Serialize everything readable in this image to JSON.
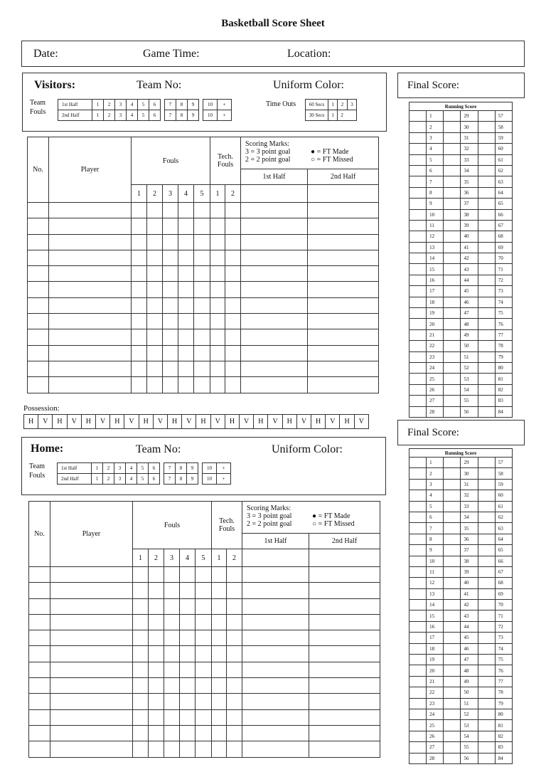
{
  "title": "Basketball Score Sheet",
  "header": {
    "date": "Date:",
    "game_time": "Game Time:",
    "location": "Location:"
  },
  "visitors": {
    "label": "Visitors:",
    "team_no": "Team No:",
    "uniform": "Uniform Color:",
    "team_fouls": [
      "Team",
      "Fouls"
    ],
    "time_outs": "Time Outs",
    "timeout_60": "60 Secs",
    "timeout_30": "30 Secs"
  },
  "home": {
    "label": "Home:",
    "team_no": "Team No:",
    "uniform": "Uniform Color:",
    "team_fouls": [
      "Team",
      "Fouls"
    ]
  },
  "fouls_rows": [
    {
      "half": "1st Half",
      "a": [
        "1",
        "2",
        "3",
        "4",
        "5",
        "6"
      ],
      "b": [
        "7",
        "8",
        "9"
      ],
      "c": [
        "10",
        "+"
      ]
    },
    {
      "half": "2nd Half",
      "a": [
        "1",
        "2",
        "3",
        "4",
        "5",
        "6"
      ],
      "b": [
        "7",
        "8",
        "9"
      ],
      "c": [
        "10",
        "+"
      ]
    }
  ],
  "timeouts": {
    "s60": [
      "1",
      "2",
      "3"
    ],
    "s30": [
      "1",
      "2"
    ]
  },
  "final_score": "Final Score:",
  "running_score": {
    "title": "Running Score",
    "col1": [
      "1",
      "2",
      "3",
      "4",
      "5",
      "6",
      "7",
      "8",
      "9",
      "10",
      "11",
      "12",
      "13",
      "14",
      "15",
      "16",
      "17",
      "18",
      "19",
      "20",
      "21",
      "22",
      "23",
      "24",
      "25",
      "26",
      "27",
      "28"
    ],
    "col2": [
      "29",
      "30",
      "31",
      "32",
      "33",
      "34",
      "35",
      "36",
      "37",
      "38",
      "39",
      "40",
      "41",
      "42",
      "43",
      "44",
      "45",
      "46",
      "47",
      "48",
      "49",
      "50",
      "51",
      "52",
      "53",
      "54",
      "55",
      "56"
    ],
    "col3": [
      "57",
      "58",
      "59",
      "60",
      "61",
      "62",
      "63",
      "64",
      "65",
      "66",
      "67",
      "68",
      "69",
      "70",
      "71",
      "72",
      "73",
      "74",
      "75",
      "76",
      "77",
      "78",
      "79",
      "80",
      "81",
      "82",
      "83",
      "84"
    ]
  },
  "player_table": {
    "no": "No.",
    "player": "Player",
    "fouls": "Fouls",
    "tech": "Tech. Fouls",
    "foul_nums": [
      "1",
      "2",
      "3",
      "4",
      "5"
    ],
    "tech_nums": [
      "1",
      "2"
    ],
    "scoring_title": "Scoring Marks:",
    "mark3": "3 = 3 point goal",
    "mark2": "2 = 2 point goal",
    "ft_made": "● = FT Made",
    "ft_missed": "○ = FT Missed",
    "half1": "1st Half",
    "half2": "2nd Half"
  },
  "possession": {
    "label": "Possession:",
    "cells": [
      "H",
      "V",
      "H",
      "V",
      "H",
      "V",
      "H",
      "V",
      "H",
      "V",
      "H",
      "V",
      "H",
      "V",
      "H",
      "V",
      "H",
      "V",
      "H",
      "V",
      "H",
      "V",
      "H",
      "V"
    ]
  }
}
